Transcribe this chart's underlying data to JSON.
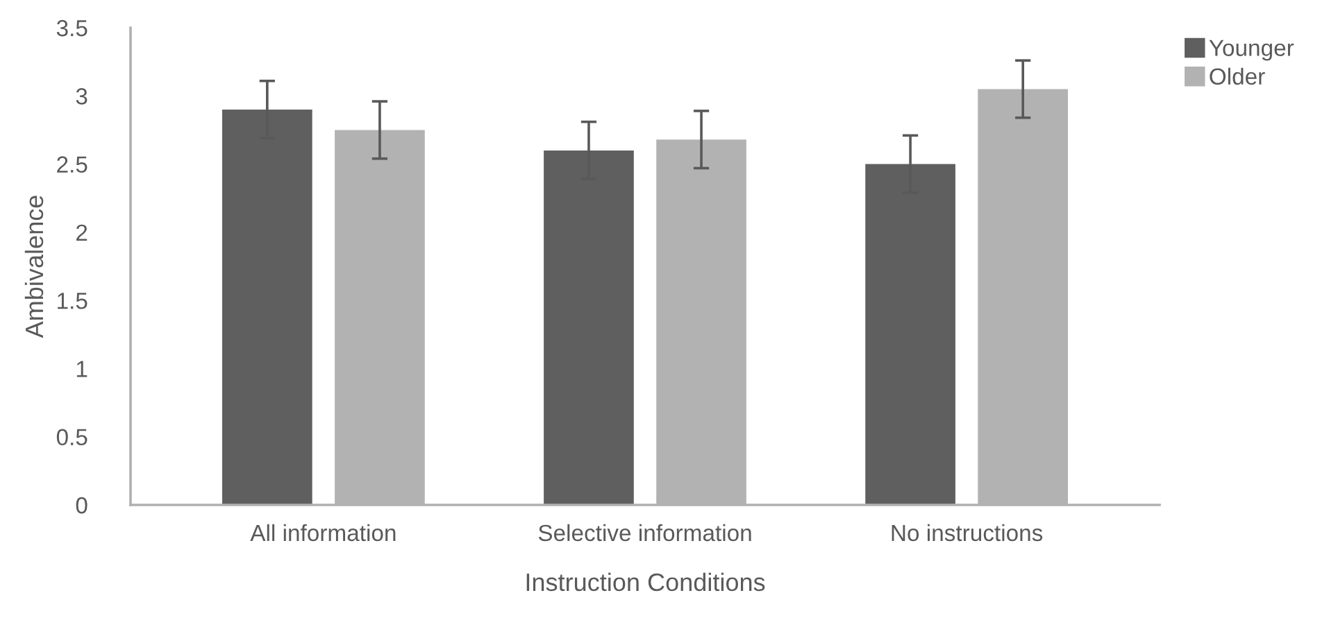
{
  "chart_data": {
    "type": "bar",
    "xlabel": "Instruction Conditions",
    "ylabel": "Ambivalence",
    "categories": [
      "All information",
      "Selective information",
      "No instructions"
    ],
    "series": [
      {
        "name": "Younger",
        "color": "#5f5f5f",
        "values": [
          2.9,
          2.6,
          2.5
        ],
        "errors": [
          0.21,
          0.21,
          0.21
        ]
      },
      {
        "name": "Older",
        "color": "#b2b2b2",
        "values": [
          2.75,
          2.68,
          3.05
        ],
        "errors": [
          0.21,
          0.21,
          0.21
        ]
      }
    ],
    "ylim": [
      0,
      3.5
    ],
    "yticks": [
      0,
      0.5,
      1,
      1.5,
      2,
      2.5,
      3,
      3.5
    ],
    "grid": false,
    "legend": "top right"
  }
}
